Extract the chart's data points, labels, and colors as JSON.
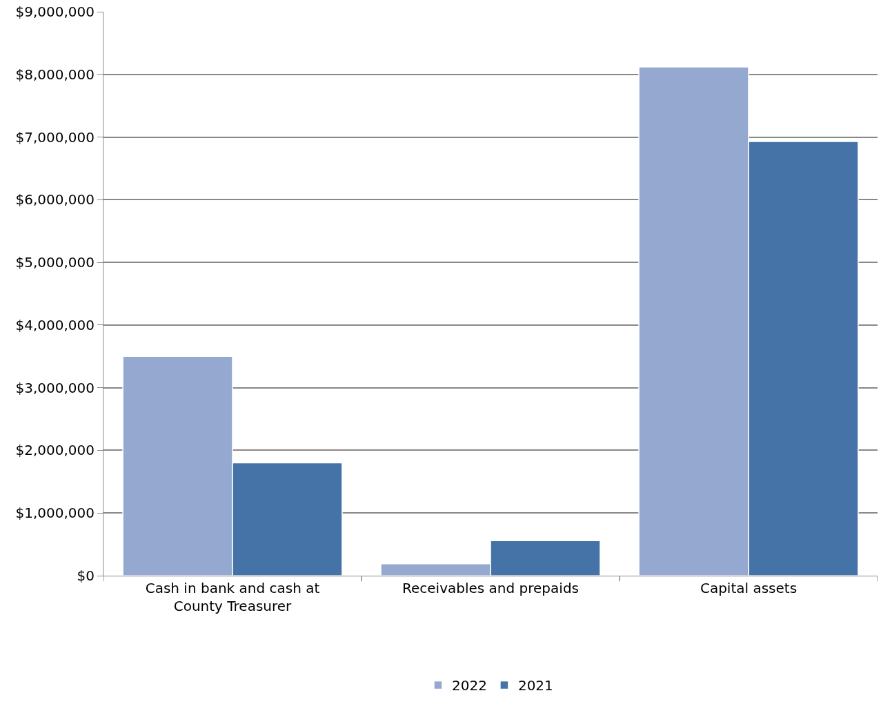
{
  "chart_data": {
    "type": "bar",
    "categories": [
      "Cash in bank and cash at County Treasurer",
      "Receivables and prepaids",
      "Capital assets"
    ],
    "series": [
      {
        "name": "2022",
        "color": "#95a9d0",
        "values": [
          3500000,
          190000,
          8120000
        ]
      },
      {
        "name": "2021",
        "color": "#4573a7",
        "values": [
          1800000,
          560000,
          6930000
        ]
      }
    ],
    "ylim": [
      0,
      9000000
    ],
    "yticks": [
      {
        "value": 0,
        "label": "$0"
      },
      {
        "value": 1000000,
        "label": "$1,000,000"
      },
      {
        "value": 2000000,
        "label": "$2,000,000"
      },
      {
        "value": 3000000,
        "label": "$3,000,000"
      },
      {
        "value": 4000000,
        "label": "$4,000,000"
      },
      {
        "value": 5000000,
        "label": "$5,000,000"
      },
      {
        "value": 6000000,
        "label": "$6,000,000"
      },
      {
        "value": 7000000,
        "label": "$7,000,000"
      },
      {
        "value": 8000000,
        "label": "$8,000,000"
      },
      {
        "value": 9000000,
        "label": "$9,000,000"
      }
    ],
    "grid": "y",
    "legend": "bottom"
  }
}
